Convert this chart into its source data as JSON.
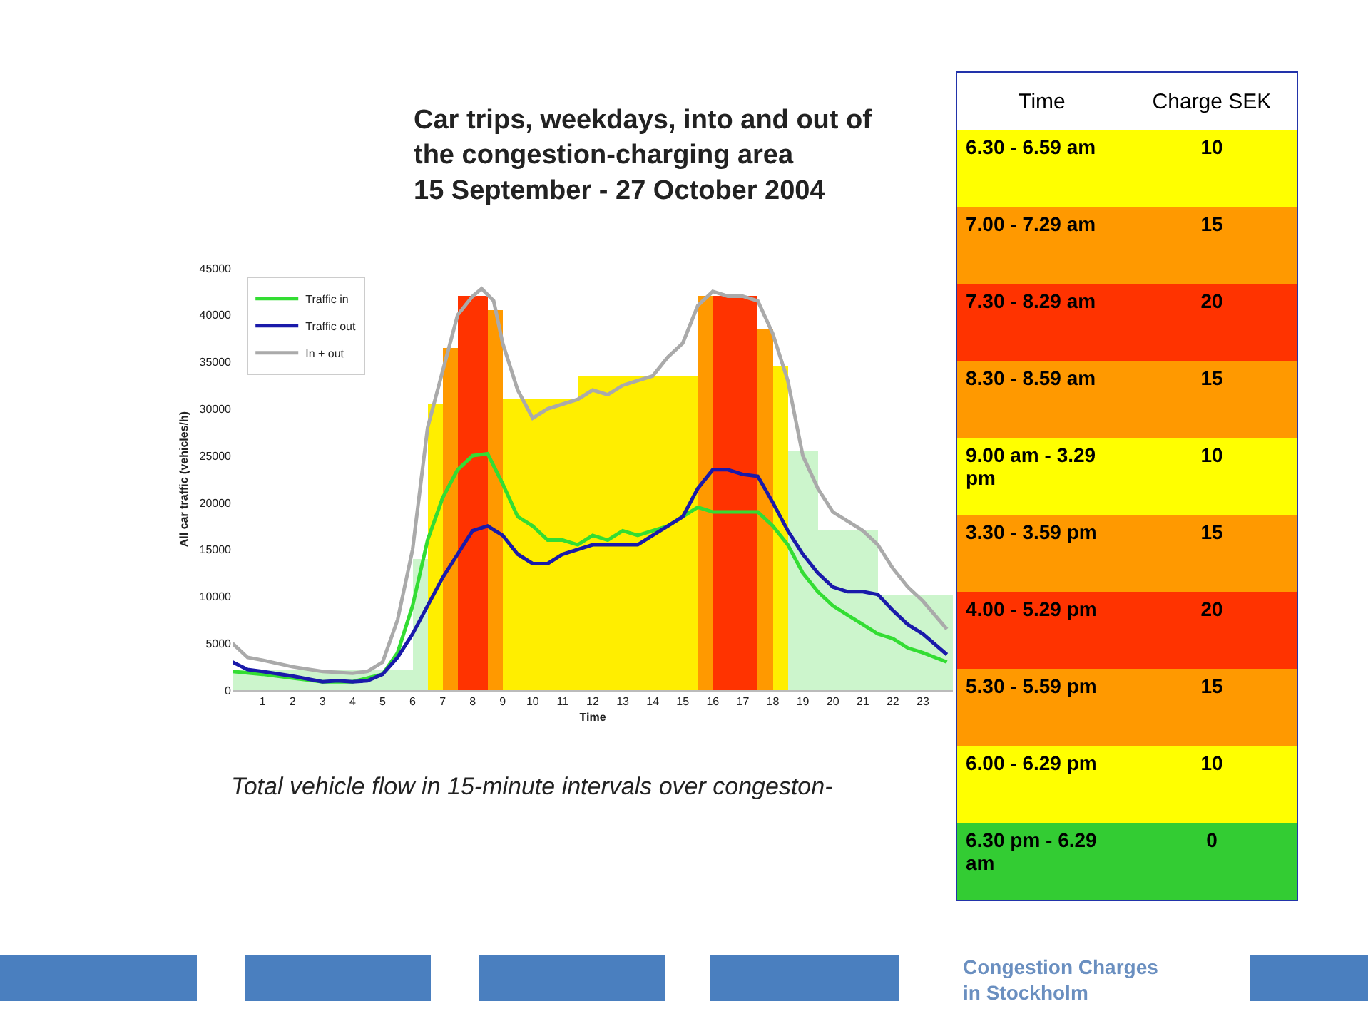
{
  "chart_data": [
    {
      "type": "line",
      "title": "Car trips, weekdays, into and out of\nthe congestion-charging area\n15 September - 27 October 2004",
      "xlabel": "Time",
      "ylabel": "All car traffic (vehicles/h)",
      "annotations": [
        "Total vehicle flow in 15-minute intervals over congeston-",
        "Congestion Charges\nin Stockholm"
      ],
      "xlim": [
        0,
        24
      ],
      "xticks": [
        1,
        2,
        3,
        4,
        5,
        6,
        7,
        8,
        9,
        10,
        11,
        12,
        13,
        14,
        15,
        16,
        17,
        18,
        19,
        20,
        21,
        22,
        23
      ],
      "ylim": [
        0,
        45000
      ],
      "yticks": [
        0,
        5000,
        10000,
        15000,
        20000,
        25000,
        30000,
        35000,
        40000,
        45000
      ],
      "grid": false,
      "legend": "top left",
      "series": [
        {
          "type": "histogram",
          "bins": [
            0,
            6,
            6.5,
            7,
            7.5,
            8.5,
            9,
            11.5,
            15.5,
            16,
            17.5,
            18,
            18.5,
            19.5,
            21.5,
            24
          ],
          "values": [
            2200,
            14000,
            30500,
            36500,
            42000,
            40500,
            31000,
            33500,
            42000,
            42000,
            38500,
            34500,
            25500,
            17000,
            10200
          ],
          "colors": [
            "#ccf5cc",
            "#ccf5cc",
            "#ffee00",
            "#ff9900",
            "#ff3300",
            "#ff9900",
            "#ffee00",
            "#ffee00",
            "#ff9900",
            "#ff3300",
            "#ff9900",
            "#ffee00",
            "#ccf5cc",
            "#ccf5cc",
            "#ccf5cc"
          ]
        },
        {
          "type": "line",
          "name": "Traffic in",
          "color": "#33dd33",
          "x": [
            0,
            1,
            2,
            3,
            4,
            5,
            5.5,
            6,
            6.5,
            7,
            7.5,
            8,
            8.5,
            9,
            9.5,
            10,
            10.5,
            11,
            11.5,
            12,
            12.5,
            13,
            13.5,
            14,
            14.5,
            15,
            15.5,
            16,
            16.5,
            17,
            17.5,
            18,
            18.5,
            19,
            19.5,
            20,
            20.5,
            21,
            21.5,
            22,
            22.5,
            23,
            23.8
          ],
          "values": [
            2000,
            1700,
            1300,
            900,
            900,
            1700,
            4000,
            9000,
            16000,
            20500,
            23500,
            25000,
            25200,
            22000,
            18500,
            17500,
            16000,
            16000,
            15500,
            16500,
            16000,
            17000,
            16500,
            17000,
            17500,
            18500,
            19500,
            19000,
            19000,
            19000,
            19000,
            17500,
            15500,
            12500,
            10500,
            9000,
            8000,
            7000,
            6000,
            5500,
            4500,
            4000,
            3000
          ]
        },
        {
          "type": "line",
          "name": "Traffic out",
          "color": "#1a1aaa",
          "x": [
            0,
            0.5,
            1,
            2,
            3,
            3.5,
            4,
            4.5,
            5,
            5.5,
            6,
            6.5,
            7,
            7.5,
            8,
            8.5,
            9,
            9.5,
            10,
            10.5,
            11,
            12,
            13,
            13.5,
            14,
            14.5,
            15,
            15.5,
            16,
            16.5,
            17,
            17.5,
            18,
            18.5,
            19,
            19.5,
            20,
            20.5,
            21,
            21.5,
            22,
            22.5,
            23,
            23.8
          ],
          "values": [
            3000,
            2200,
            2000,
            1500,
            900,
            1000,
            900,
            1000,
            1700,
            3500,
            6000,
            9000,
            12000,
            14500,
            17000,
            17500,
            16500,
            14500,
            13500,
            13500,
            14500,
            15500,
            15500,
            15500,
            16500,
            17500,
            18500,
            21500,
            23500,
            23500,
            23000,
            22800,
            20000,
            17000,
            14500,
            12500,
            11000,
            10500,
            10500,
            10200,
            8500,
            7000,
            6000,
            3800
          ]
        },
        {
          "type": "line",
          "name": "In + out",
          "color": "#aaaaaa",
          "x": [
            0,
            0.5,
            1,
            2,
            3,
            4,
            4.5,
            5,
            5.5,
            6,
            6.5,
            7,
            7.5,
            8,
            8.3,
            8.7,
            9,
            9.5,
            10,
            10.5,
            11,
            11.5,
            12,
            12.5,
            13,
            13.5,
            14,
            14.5,
            15,
            15.5,
            16,
            16.5,
            17,
            17.5,
            18,
            18.5,
            19,
            19.5,
            20,
            20.5,
            21,
            21.5,
            22,
            22.5,
            23,
            23.8
          ],
          "values": [
            5000,
            3500,
            3200,
            2500,
            2000,
            1800,
            2000,
            3000,
            7500,
            15000,
            28000,
            34000,
            40000,
            42000,
            42800,
            41500,
            37000,
            32000,
            29000,
            30000,
            30500,
            31000,
            32000,
            31500,
            32500,
            33000,
            33500,
            35500,
            37000,
            41000,
            42500,
            42000,
            42000,
            41500,
            38000,
            33000,
            25000,
            21500,
            19000,
            18000,
            17000,
            15500,
            13000,
            11000,
            9500,
            6500
          ]
        }
      ]
    },
    {
      "type": "other",
      "data_labels": true,
      "xlabel": "Time",
      "ylabel": "Charge SEK",
      "categories": [
        "6.30 - 6.59 am",
        "7.00 - 7.29 am",
        "7.30 - 8.29 am",
        "8.30 - 8.59 am",
        "9.00 am - 3.29 pm",
        "3.30 - 3.59 pm",
        "4.00 - 5.29 pm",
        "5.30 - 5.59 pm",
        "6.00 - 6.29 pm",
        "6.30 pm - 6.29 am"
      ],
      "values": [
        10,
        15,
        20,
        15,
        10,
        15,
        20,
        15,
        10,
        0
      ],
      "colors": [
        "#ffff00",
        "#ff9900",
        "#ff3300",
        "#ff9900",
        "#ffff00",
        "#ff9900",
        "#ff3300",
        "#ff9900",
        "#ffff00",
        "#33cc33"
      ]
    }
  ]
}
